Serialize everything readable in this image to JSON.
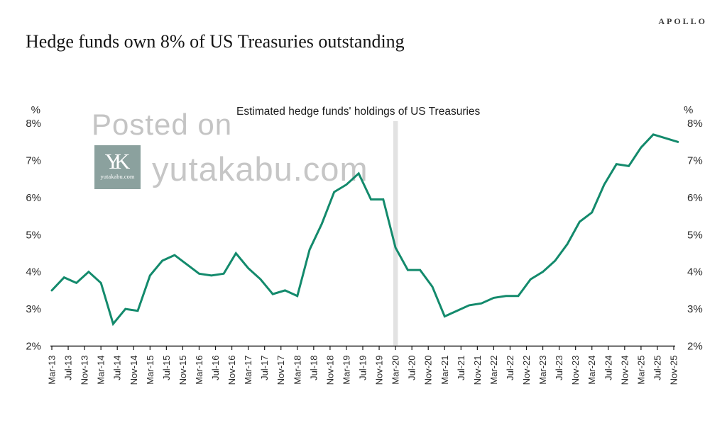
{
  "header": {
    "brand": "APOLLO",
    "title": "Hedge funds own 8% of US Treasuries outstanding"
  },
  "watermark": {
    "posted": "Posted on",
    "domain_large": "yutakabu.com",
    "monogram": "YK",
    "logo_domain": "yutakabu.com"
  },
  "chart_data": {
    "type": "line",
    "title": "Estimated hedge funds' holdings of US Treasuries",
    "xlabel": "",
    "ylabel": "%",
    "unit": "%",
    "ylim": [
      2,
      8
    ],
    "grid": false,
    "legend_position": "top-center",
    "ytick_labels": [
      "8%",
      "7%",
      "6%",
      "5%",
      "4%",
      "3%",
      "2%"
    ],
    "ytick_values": [
      8,
      7,
      6,
      5,
      4,
      3,
      2
    ],
    "axis_unit_label": "%",
    "x_tick_labels": [
      "Mar-13",
      "Jul-13",
      "Nov-13",
      "Mar-14",
      "Jul-14",
      "Nov-14",
      "Mar-15",
      "Jul-15",
      "Nov-15",
      "Mar-16",
      "Jul-16",
      "Nov-16",
      "Mar-17",
      "Jul-17",
      "Nov-17",
      "Mar-18",
      "Jul-18",
      "Nov-18",
      "Mar-19",
      "Jul-19",
      "Nov-19",
      "Mar-20",
      "Jul-20",
      "Nov-20",
      "Mar-21",
      "Jul-21",
      "Nov-21",
      "Mar-22",
      "Jul-22",
      "Nov-22",
      "Mar-23",
      "Jul-23",
      "Nov-23",
      "Mar-24",
      "Jul-24",
      "Nov-24",
      "Mar-25",
      "Jul-25",
      "Nov-25"
    ],
    "highlight_x": "Mar-20",
    "line_color": "#138a6c",
    "highlight_color": "#e2e2e2",
    "series": [
      {
        "name": "Estimated hedge funds' holdings of US Treasuries",
        "x": [
          "Mar-13",
          "Jun-13",
          "Sep-13",
          "Dec-13",
          "Mar-14",
          "Jun-14",
          "Sep-14",
          "Dec-14",
          "Mar-15",
          "Jun-15",
          "Sep-15",
          "Dec-15",
          "Mar-16",
          "Jun-16",
          "Sep-16",
          "Dec-16",
          "Mar-17",
          "Jun-17",
          "Sep-17",
          "Dec-17",
          "Mar-18",
          "Jun-18",
          "Sep-18",
          "Dec-18",
          "Mar-19",
          "Jun-19",
          "Sep-19",
          "Dec-19",
          "Mar-20",
          "Jun-20",
          "Sep-20",
          "Dec-20",
          "Mar-21",
          "Jun-21",
          "Sep-21",
          "Dec-21",
          "Mar-22",
          "Jun-22",
          "Sep-22",
          "Dec-22",
          "Mar-23",
          "Jun-23",
          "Sep-23",
          "Dec-23",
          "Mar-24",
          "Jun-24",
          "Sep-24",
          "Dec-24",
          "Mar-25",
          "Jun-25",
          "Sep-25",
          "Dec-25"
        ],
        "values": [
          3.5,
          3.85,
          3.7,
          4.0,
          3.7,
          2.6,
          3.0,
          2.95,
          3.9,
          4.3,
          4.45,
          4.2,
          3.95,
          3.9,
          3.95,
          4.5,
          4.1,
          3.8,
          3.4,
          3.5,
          3.35,
          4.6,
          5.3,
          6.15,
          6.35,
          6.65,
          5.95,
          5.95,
          4.65,
          4.05,
          4.05,
          3.6,
          2.8,
          2.95,
          3.1,
          3.15,
          3.3,
          3.35,
          3.35,
          3.8,
          4.0,
          4.3,
          4.75,
          5.35,
          5.6,
          6.35,
          6.9,
          6.85,
          7.35,
          7.7,
          7.6,
          7.5
        ]
      }
    ]
  }
}
